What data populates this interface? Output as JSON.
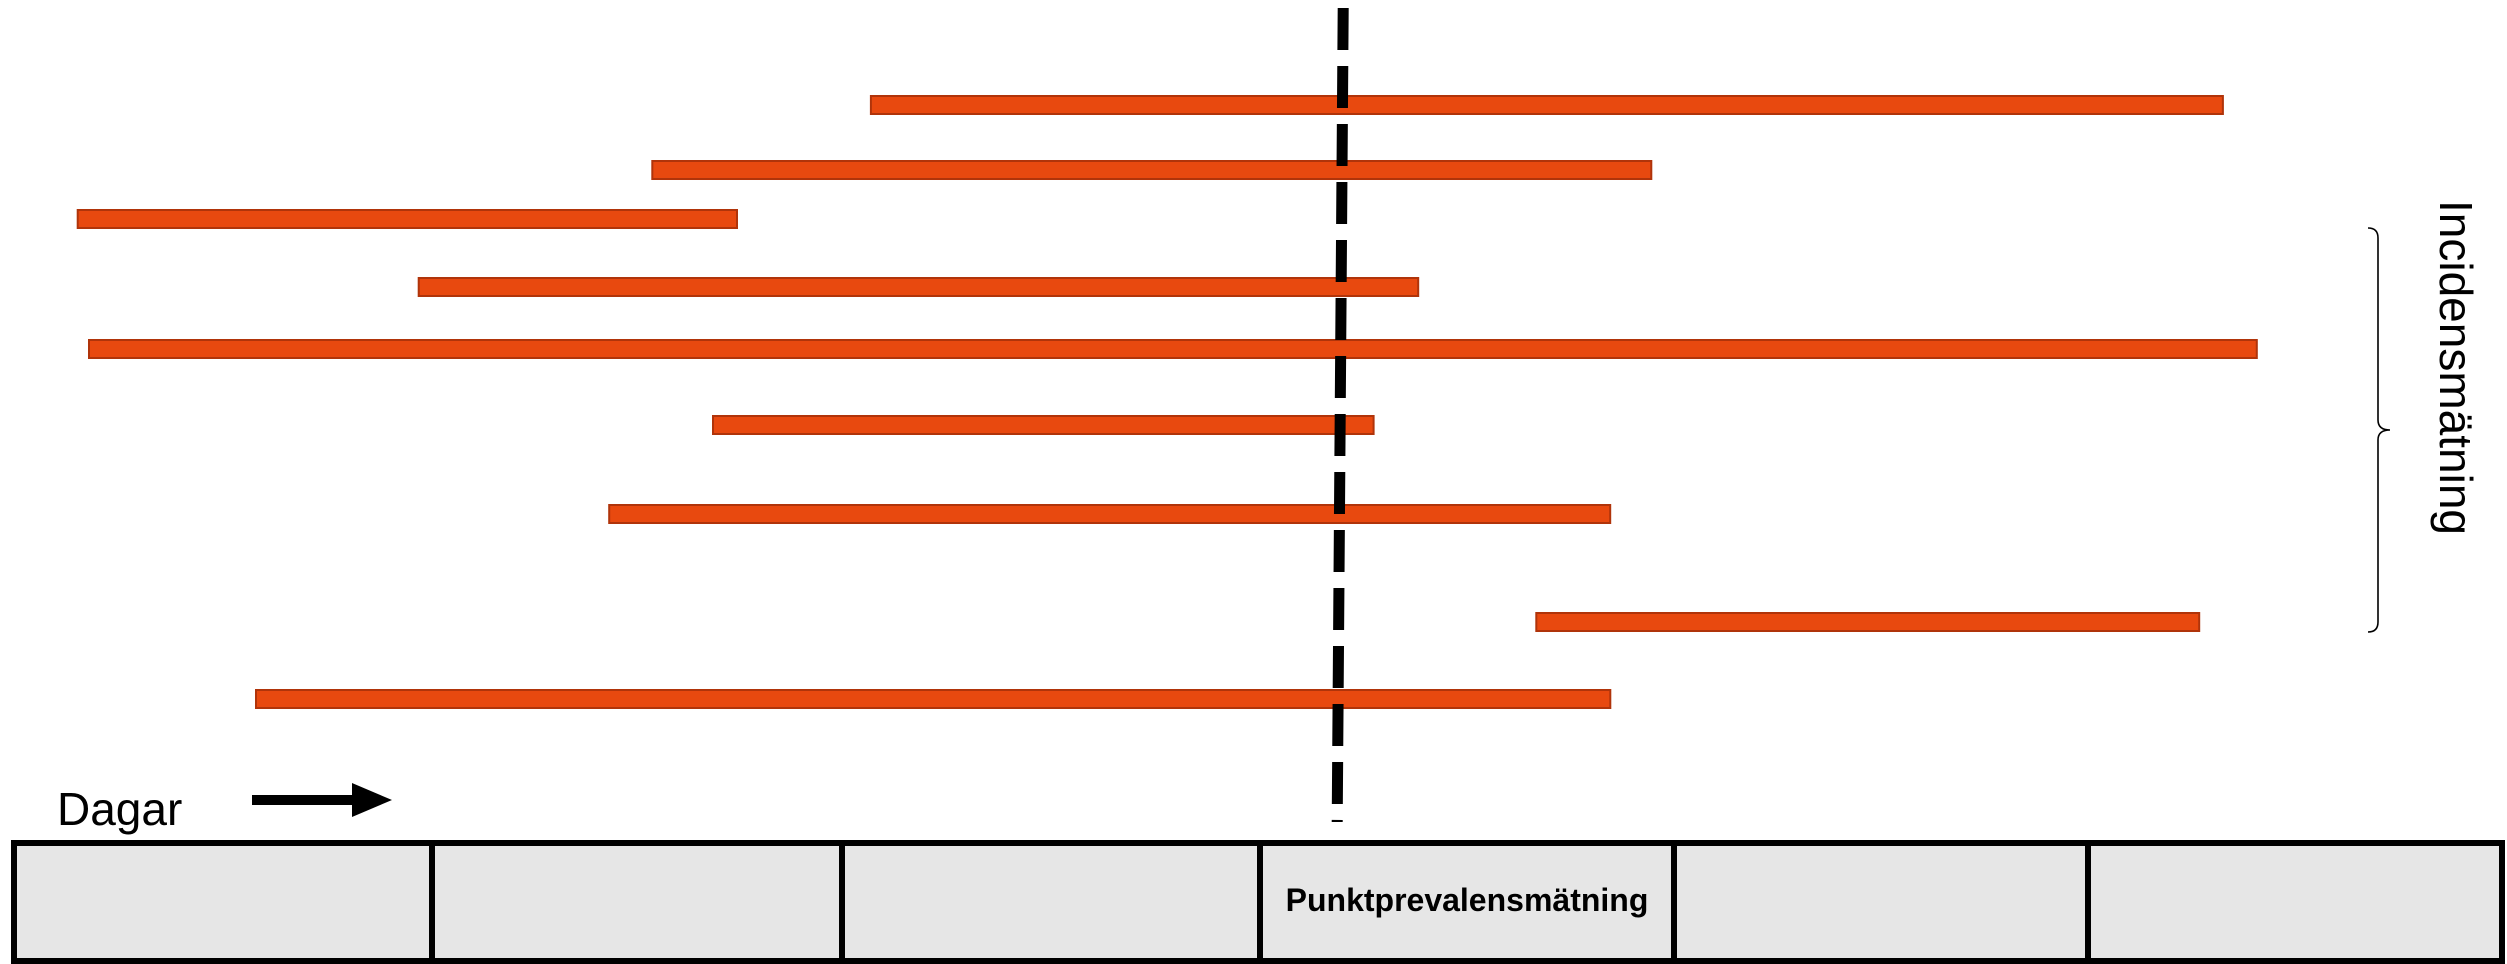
{
  "colors": {
    "bar_fill": "#e8490f",
    "bar_stroke": "#b0340a",
    "cell_fill": "#e6e6e6",
    "line": "#000000"
  },
  "axis": {
    "label": "Dagar",
    "arrow_icon": "right-arrow-icon"
  },
  "incidence": {
    "label": "Incidensmätning"
  },
  "timeline": {
    "cells": [
      "",
      "",
      "",
      "Punktprevalensmätning",
      "",
      ""
    ]
  },
  "bars": [
    {
      "start": 0.3474,
      "end": 0.8867
    },
    {
      "start": 0.2602,
      "end": 0.6587
    },
    {
      "start": 0.031,
      "end": 0.294
    },
    {
      "start": 0.167,
      "end": 0.5657
    },
    {
      "start": 0.0355,
      "end": 0.9002
    },
    {
      "start": 0.2844,
      "end": 0.5479
    },
    {
      "start": 0.243,
      "end": 0.6423
    },
    {
      "start": 0.6128,
      "end": 0.8772
    },
    {
      "start": 0.1021,
      "end": 0.6423
    }
  ],
  "measurement_point": 0.5346
}
